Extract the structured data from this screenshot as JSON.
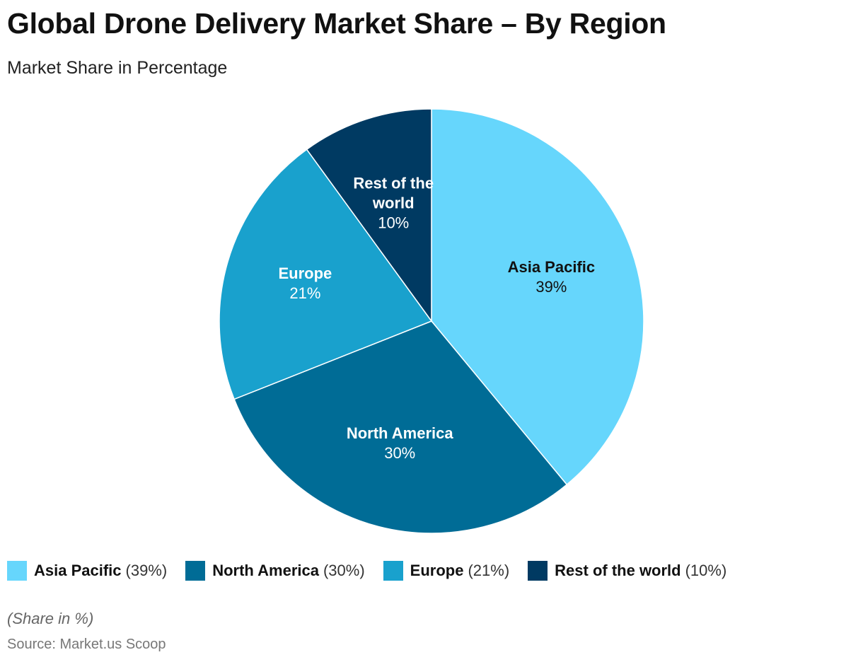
{
  "title": "Global Drone Delivery Market Share – By Region",
  "subtitle": "Market Share in Percentage",
  "chart_data": {
    "type": "pie",
    "title": "Global Drone Delivery Market Share – By Region",
    "subtitle": "Market Share in Percentage",
    "unit": "%",
    "slices": [
      {
        "name": "Asia Pacific",
        "value": 39,
        "label": "39%",
        "color": "#66D6FC",
        "text_color": "#111111",
        "label_lines": [
          "Asia Pacific"
        ]
      },
      {
        "name": "North America",
        "value": 30,
        "label": "30%",
        "color": "#006C96",
        "text_color": "#FFFFFF",
        "label_lines": [
          "North America"
        ]
      },
      {
        "name": "Europe",
        "value": 21,
        "label": "21%",
        "color": "#19A1CD",
        "text_color": "#FFFFFF",
        "label_lines": [
          "Europe"
        ]
      },
      {
        "name": "Rest of the world",
        "value": 10,
        "label": "10%",
        "color": "#003A62",
        "text_color": "#FFFFFF",
        "label_lines": [
          "Rest of the",
          "world"
        ]
      }
    ],
    "legend_position": "bottom-left"
  },
  "legend": [
    {
      "name": "Asia Pacific",
      "pct": "(39%)",
      "color": "#66D6FC"
    },
    {
      "name": "North America",
      "pct": "(30%)",
      "color": "#006C96"
    },
    {
      "name": "Europe",
      "pct": "(21%)",
      "color": "#19A1CD"
    },
    {
      "name": "Rest of the world",
      "pct": "(10%)",
      "color": "#003A62"
    }
  ],
  "note": "(Share in %)",
  "source": "Source: Market.us Scoop"
}
